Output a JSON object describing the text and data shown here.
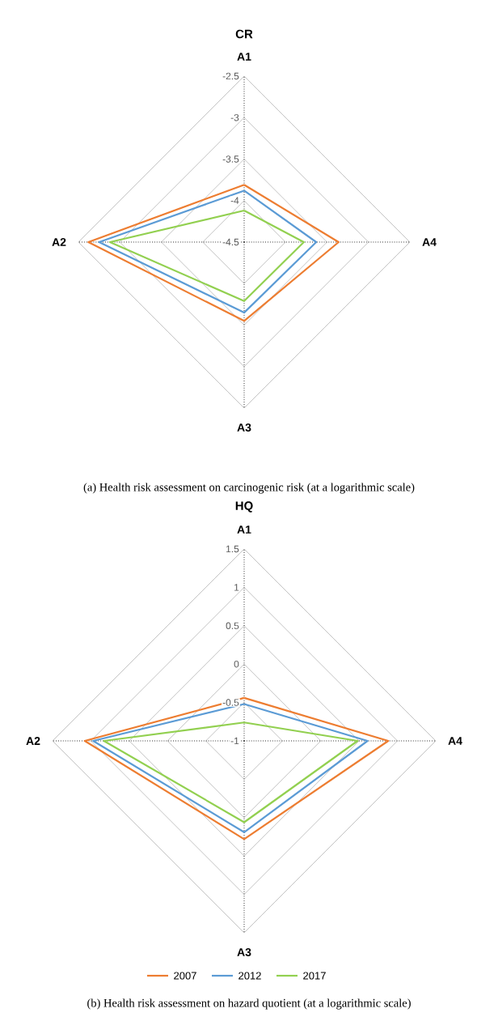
{
  "chart_data": [
    {
      "type": "radar",
      "title": "CR",
      "categories": [
        "A1",
        "A4",
        "A3",
        "A2"
      ],
      "ylim": [
        -4.5,
        -2.5
      ],
      "yticks": [
        -4.5,
        -4,
        -3.5,
        -3,
        -2.5
      ],
      "grid": true,
      "series": [
        {
          "color": "#ed7d31",
          "values": [
            -3.81,
            -3.36,
            -3.55,
            -2.62
          ]
        },
        {
          "color": "#5b9bd5",
          "values": [
            -3.88,
            -3.63,
            -3.65,
            -2.75
          ]
        },
        {
          "color": "#92d050",
          "values": [
            -4.12,
            -3.78,
            -3.79,
            -2.88
          ]
        }
      ],
      "annotations": [
        "(a) Health risk assessment on carcinogenic risk (at a logarithmic scale)"
      ]
    },
    {
      "type": "radar",
      "title": "HQ",
      "categories": [
        "A1",
        "A4",
        "A3",
        "A2"
      ],
      "ylim": [
        -1,
        1.5
      ],
      "yticks": [
        -1,
        -0.5,
        0,
        0.5,
        1,
        1.5
      ],
      "grid": true,
      "legend": "bottom",
      "series": [
        {
          "name": "2007",
          "color": "#ed7d31",
          "values": [
            -0.44,
            0.88,
            0.28,
            1.08
          ]
        },
        {
          "name": "2012",
          "color": "#5b9bd5",
          "values": [
            -0.52,
            0.61,
            0.19,
            0.97
          ]
        },
        {
          "name": "2017",
          "color": "#92d050",
          "values": [
            -0.76,
            0.48,
            0.06,
            0.83
          ]
        }
      ],
      "annotations": [
        "(b) Health risk assessment on hazard quotient (at a logarithmic scale)"
      ]
    }
  ]
}
